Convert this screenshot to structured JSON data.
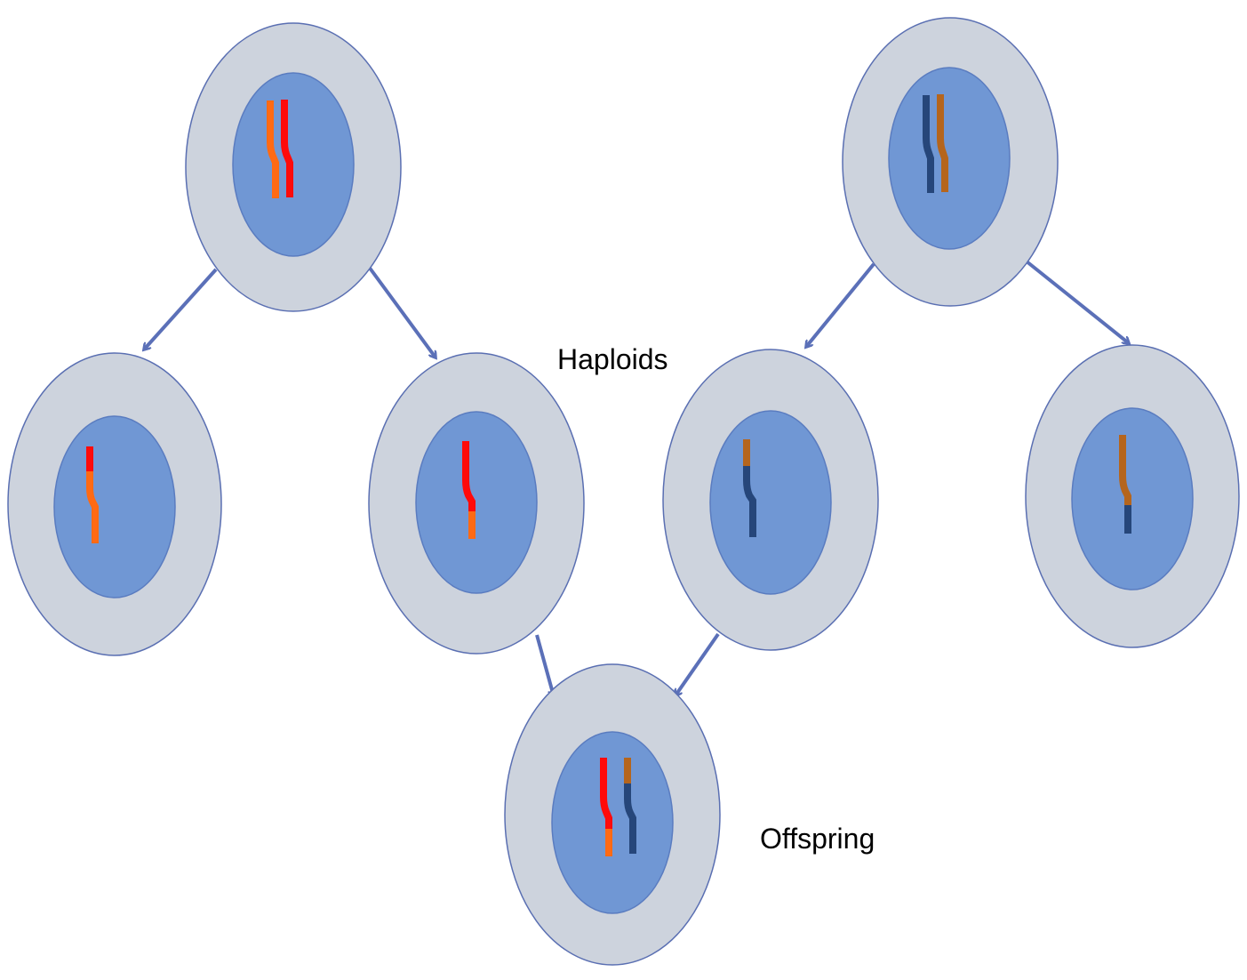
{
  "labels": {
    "haploids": "Haploids",
    "offspring": "Offspring"
  },
  "colors": {
    "cytoplasm": "#cdd3dd",
    "cell_outline": "#5a6fb2",
    "nucleus": "#7097d4",
    "nucleus_outline": "#5a7cc0",
    "arrow": "#5b70b8",
    "chromosome_red": "#ff0a0a",
    "chromosome_orange": "#ff6a14",
    "chromosome_navy": "#26467a",
    "chromosome_brown": "#b5651d"
  }
}
